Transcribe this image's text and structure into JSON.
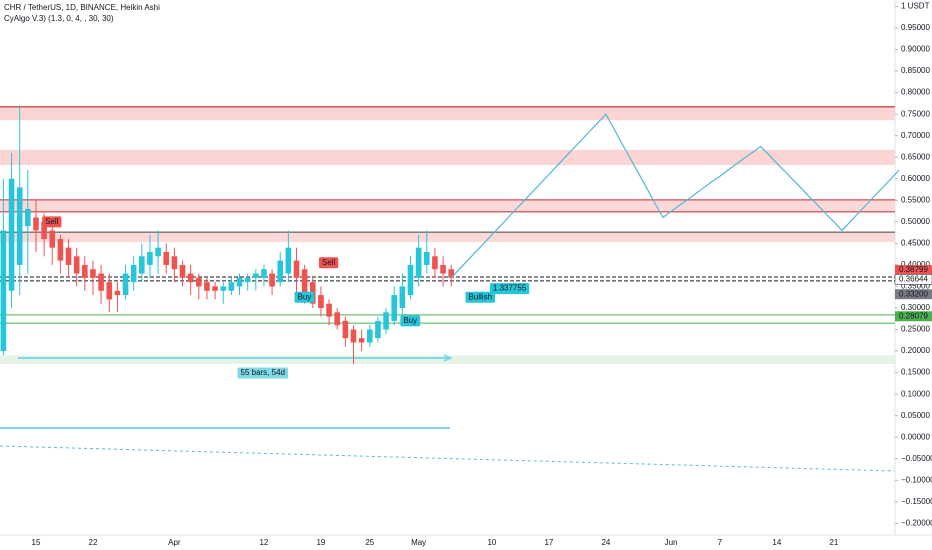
{
  "chart_data": {
    "type": "candlestick",
    "title": "CHR / TetherUS, 1D, BINANCE, Heikin Ashi",
    "subtitle": "CyAlgo V.3) (1.3, 0, 4, , 30, 30)",
    "categories": [
      null,
      null,
      null,
      null,
      "15",
      null,
      null,
      null,
      null,
      null,
      null,
      "22",
      null,
      null,
      null,
      null,
      null,
      null,
      null,
      null,
      null,
      "Apr",
      null,
      null,
      null,
      null,
      null,
      null,
      null,
      null,
      null,
      null,
      "12",
      null,
      null,
      null,
      null,
      null,
      null,
      "19",
      null,
      null,
      null,
      null,
      null,
      "25",
      null,
      null,
      null,
      null,
      null,
      "May",
      null,
      null,
      null,
      null,
      null,
      null,
      null,
      null,
      "10",
      null,
      null,
      null,
      null,
      null,
      null,
      "17",
      null,
      null,
      null,
      null,
      null,
      null,
      "24",
      null,
      null,
      null,
      null,
      null,
      null,
      null,
      "Jun",
      null,
      null,
      null,
      null,
      null,
      "7",
      null,
      null,
      null,
      null,
      null,
      null,
      "14",
      null,
      null,
      null,
      null,
      null,
      null,
      "21",
      null,
      null,
      null,
      null,
      null,
      null,
      null,
      null
    ],
    "open": [
      0.2,
      0.34,
      0.4,
      0.49,
      0.51,
      0.5,
      0.48,
      0.46,
      0.44,
      0.42,
      0.4,
      0.39,
      0.38,
      0.36,
      0.34,
      0.33,
      0.36,
      0.38,
      0.4,
      0.42,
      0.43,
      0.42,
      0.4,
      0.38,
      0.37,
      0.36,
      0.35,
      0.34,
      0.34,
      0.35,
      0.36,
      0.37,
      0.37,
      0.38,
      0.36,
      0.38,
      0.41,
      0.39,
      0.36,
      0.33,
      0.31,
      0.29,
      0.27,
      0.25,
      0.23,
      0.22,
      0.23,
      0.25,
      0.27,
      0.3,
      0.33,
      0.37,
      0.4,
      0.42,
      0.4,
      0.39,
      null,
      null,
      null,
      null,
      null,
      null,
      null,
      null,
      null,
      null,
      null,
      null,
      null,
      null,
      null,
      null,
      null,
      null,
      null,
      null,
      null,
      null,
      null,
      null,
      null,
      null,
      null,
      null,
      null,
      null,
      null,
      null,
      null,
      null,
      null,
      null,
      null,
      null,
      null,
      null,
      null,
      null,
      null,
      null,
      null,
      null,
      null,
      null,
      null,
      null,
      null,
      null,
      null,
      null,
      null
    ],
    "high": [
      0.6,
      0.66,
      0.77,
      0.62,
      0.55,
      0.52,
      0.5,
      0.47,
      0.46,
      0.44,
      0.42,
      0.41,
      0.4,
      0.38,
      0.36,
      0.4,
      0.42,
      0.45,
      0.47,
      0.48,
      0.45,
      0.44,
      0.41,
      0.4,
      0.38,
      0.37,
      0.36,
      0.36,
      0.37,
      0.38,
      0.38,
      0.39,
      0.4,
      0.39,
      0.43,
      0.48,
      0.44,
      0.4,
      0.37,
      0.35,
      0.32,
      0.3,
      0.28,
      0.26,
      0.25,
      0.26,
      0.28,
      0.3,
      0.35,
      0.38,
      0.42,
      0.47,
      0.48,
      0.44,
      0.42,
      0.4,
      null,
      null,
      null,
      null,
      null,
      null,
      null,
      null,
      null,
      null,
      null,
      null,
      null,
      null,
      null,
      null,
      null,
      null,
      null,
      null,
      null,
      null,
      null,
      null,
      null,
      null,
      null,
      null,
      null,
      null,
      null,
      null,
      null,
      null,
      null,
      null,
      null,
      null,
      null,
      null,
      null,
      null,
      null,
      null,
      null,
      null,
      null,
      null,
      null,
      null,
      null,
      null,
      null,
      null,
      null
    ],
    "low": [
      0.19,
      0.3,
      0.33,
      0.38,
      0.43,
      0.42,
      0.4,
      0.38,
      0.37,
      0.35,
      0.34,
      0.33,
      0.31,
      0.29,
      0.29,
      0.32,
      0.34,
      0.36,
      0.37,
      0.38,
      0.38,
      0.36,
      0.35,
      0.33,
      0.32,
      0.32,
      0.32,
      0.31,
      0.33,
      0.33,
      0.34,
      0.34,
      0.35,
      0.33,
      0.35,
      0.36,
      0.33,
      0.31,
      0.3,
      0.28,
      0.26,
      0.25,
      0.21,
      0.17,
      0.2,
      0.21,
      0.22,
      0.24,
      0.26,
      0.28,
      0.32,
      0.35,
      0.38,
      0.37,
      0.35,
      0.35,
      null,
      null,
      null,
      null,
      null,
      null,
      null,
      null,
      null,
      null,
      null,
      null,
      null,
      null,
      null,
      null,
      null,
      null,
      null,
      null,
      null,
      null,
      null,
      null,
      null,
      null,
      null,
      null,
      null,
      null,
      null,
      null,
      null,
      null,
      null,
      null,
      null,
      null,
      null,
      null,
      null,
      null,
      null,
      null,
      null,
      null,
      null,
      null,
      null,
      null,
      null,
      null,
      null,
      null,
      null
    ],
    "close": [
      0.48,
      0.6,
      0.58,
      0.53,
      0.48,
      0.46,
      0.44,
      0.41,
      0.4,
      0.38,
      0.37,
      0.37,
      0.34,
      0.32,
      0.33,
      0.38,
      0.4,
      0.42,
      0.43,
      0.44,
      0.4,
      0.39,
      0.37,
      0.36,
      0.35,
      0.34,
      0.34,
      0.35,
      0.36,
      0.37,
      0.37,
      0.38,
      0.39,
      0.35,
      0.41,
      0.44,
      0.37,
      0.33,
      0.31,
      0.3,
      0.28,
      0.26,
      0.23,
      0.22,
      0.22,
      0.25,
      0.27,
      0.29,
      0.33,
      0.35,
      0.4,
      0.44,
      0.43,
      0.39,
      0.38,
      0.37,
      null,
      null,
      null,
      null,
      null,
      null,
      null,
      null,
      null,
      null,
      null,
      null,
      null,
      null,
      null,
      null,
      null,
      null,
      null,
      null,
      null,
      null,
      null,
      null,
      null,
      null,
      null,
      null,
      null,
      null,
      null,
      null,
      null,
      null,
      null,
      null,
      null,
      null,
      null,
      null,
      null,
      null,
      null,
      null,
      null,
      null,
      null,
      null,
      null,
      null,
      null,
      null,
      null,
      null,
      null
    ],
    "up_color": "#26c6da",
    "down_color": "#ef5350",
    "series": [
      {
        "color": "#4fb8d6",
        "values": [
          null,
          null,
          null,
          null,
          null,
          null,
          null,
          null,
          null,
          null,
          null,
          null,
          null,
          null,
          null,
          null,
          null,
          null,
          null,
          null,
          null,
          null,
          null,
          null,
          null,
          null,
          null,
          null,
          null,
          null,
          null,
          null,
          null,
          null,
          null,
          null,
          null,
          null,
          null,
          null,
          null,
          null,
          null,
          null,
          null,
          null,
          null,
          null,
          null,
          null,
          null,
          null,
          null,
          null,
          null,
          0.37,
          0.39,
          0.41,
          0.43,
          0.45,
          0.47,
          0.49,
          0.51,
          0.53,
          0.55,
          0.57,
          0.59,
          0.61,
          0.63,
          0.65,
          0.67,
          0.69,
          0.71,
          0.73,
          0.75,
          0.716,
          0.681,
          0.647,
          0.613,
          0.579,
          0.544,
          0.51,
          0.524,
          0.538,
          0.551,
          0.565,
          0.579,
          0.593,
          0.606,
          0.62,
          0.634,
          0.648,
          0.661,
          0.675,
          0.656,
          0.636,
          0.617,
          0.597,
          0.578,
          0.558,
          0.539,
          0.519,
          0.5,
          0.48,
          0.5,
          0.52,
          0.54,
          0.56,
          0.58,
          0.6,
          0.62
        ]
      }
    ],
    "zones": [
      {
        "from": 0.736,
        "to": 0.769,
        "color": "rgba(239,83,80,0.25)"
      },
      {
        "from": 0.632,
        "to": 0.667,
        "color": "rgba(239,83,80,0.25)"
      },
      {
        "from": 0.523,
        "to": 0.551,
        "color": "rgba(239,83,80,0.22)"
      },
      {
        "from": 0.453,
        "to": 0.476,
        "color": "rgba(239,83,80,0.22)"
      },
      {
        "from": 0.17,
        "to": 0.19,
        "color": "rgba(76,175,80,0.15)"
      }
    ],
    "levels": [
      {
        "value": 0.767,
        "color": "#b71c1c",
        "dashed": false
      },
      {
        "value": 0.551,
        "color": "#c62828",
        "dashed": false
      },
      {
        "value": 0.523,
        "color": "#c62828",
        "dashed": false
      },
      {
        "value": 0.476,
        "color": "#424242",
        "dashed": false
      },
      {
        "value": 0.372,
        "color": "#131722",
        "dashed": true
      },
      {
        "value": 0.363,
        "color": "#131722",
        "dashed": true
      },
      {
        "value": 0.284,
        "color": "#4caf50",
        "dashed": false
      },
      {
        "value": 0.265,
        "color": "#4caf50",
        "dashed": false
      }
    ],
    "price_labels": [
      {
        "price": 0.38799,
        "color": "#ef5350"
      },
      {
        "price": 0.36644,
        "color": "#ffffff"
      },
      {
        "price": {
          "value": 0.332,
          "label": "0.33200"
        },
        "color": "#787b86"
      },
      {
        "price": 0.28079,
        "color": "#4caf50"
      }
    ],
    "annotations": [
      {
        "text": "Sell",
        "index": 5,
        "price": 0.5,
        "color": "#ef5350"
      },
      {
        "text": "Sell",
        "index": 39,
        "price": 0.405,
        "color": "#ef5350"
      },
      {
        "text": "Buy",
        "index": 36,
        "price": 0.325,
        "color": "#26c6da"
      },
      {
        "text": "Buy",
        "index": 49,
        "price": 0.27,
        "color": "#26c6da"
      },
      {
        "text": "Bullish",
        "index": 57,
        "price": 0.325,
        "color": "#26c6da"
      },
      {
        "text": "1.337755",
        "index": 60,
        "price": 0.345,
        "color": "#26c6da"
      },
      {
        "text": "55 bars, 54d",
        "index": 29,
        "price": 0.149,
        "color": "#7fd8e6"
      }
    ],
    "ylim": [
      -0.227,
      1.015
    ],
    "yticks": [
      {
        "value": 1,
        "label": "1 USDT"
      },
      {
        "value": 0.95,
        "label": "0.95000"
      },
      {
        "value": 0.9,
        "label": "0.90000"
      },
      {
        "value": 0.85,
        "label": "0.85000"
      },
      {
        "value": 0.8,
        "label": "0.80000"
      },
      {
        "value": 0.75,
        "label": "0.75000"
      },
      {
        "value": 0.7,
        "label": "0.70000"
      },
      {
        "value": 0.65,
        "label": "0.65000"
      },
      {
        "value": 0.6,
        "label": "0.60000"
      },
      {
        "value": 0.55,
        "label": "0.55000"
      },
      {
        "value": 0.5,
        "label": "0.50000"
      },
      {
        "value": 0.45,
        "label": "0.45000"
      },
      {
        "value": 0.4,
        "label": "0.40000"
      },
      {
        "value": 0.35,
        "label": "0.35000"
      },
      {
        "value": 0.3,
        "label": "0.30000"
      },
      {
        "value": 0.25,
        "label": "0.25000"
      },
      {
        "value": 0.2,
        "label": "0.20000"
      },
      {
        "value": 0.15,
        "label": "0.15000"
      },
      {
        "value": 0.1,
        "label": "0.10000"
      },
      {
        "value": 0.05,
        "label": "0.05000"
      },
      {
        "value": 0,
        "label": "0.00000"
      },
      {
        "value": -0.05,
        "label": "−0.05000"
      },
      {
        "value": -0.1,
        "label": "−0.10000"
      },
      {
        "value": -0.15,
        "label": "−0.15000"
      },
      {
        "value": -0.2,
        "label": "−0.20000"
      }
    ],
    "grid": false
  }
}
